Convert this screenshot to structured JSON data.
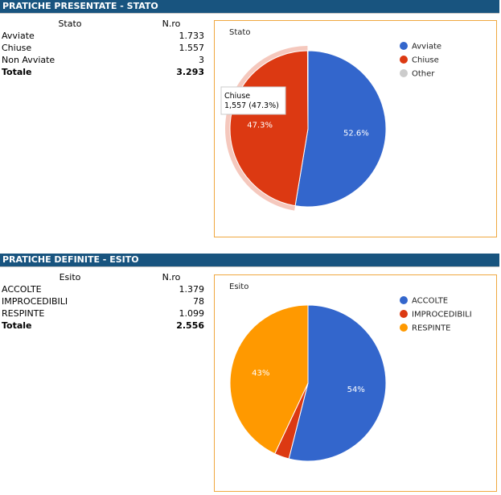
{
  "sections": [
    {
      "header": "PRATICHE PRESENTATE - STATO",
      "table": {
        "headers": [
          "Stato",
          "N.ro"
        ],
        "rows": [
          [
            "Avviate",
            "1.733"
          ],
          [
            "Chiuse",
            "1.557"
          ],
          [
            "Non Avviate",
            "3"
          ]
        ],
        "total": [
          "Totale",
          "3.293"
        ]
      }
    },
    {
      "header": "PRATICHE DEFINITE - ESITO",
      "table": {
        "headers": [
          "Esito",
          "N.ro"
        ],
        "rows": [
          [
            "ACCOLTE",
            "1.379"
          ],
          [
            "IMPROCEDIBILI",
            "78"
          ],
          [
            "RESPINTE",
            "1.099"
          ]
        ],
        "total": [
          "Totale",
          "2.556"
        ]
      }
    }
  ],
  "chart_data": [
    {
      "type": "pie",
      "title": "Stato",
      "legend_position": "right",
      "slices": [
        {
          "label": "Avviate",
          "value": 1733,
          "percent_label": "52.6%",
          "color": "#3366cc"
        },
        {
          "label": "Chiuse",
          "value": 1557,
          "percent_label": "47.3%",
          "color": "#dc3912"
        },
        {
          "label": "Other",
          "value": 3,
          "percent_label": "",
          "color": "#cccccc"
        }
      ],
      "highlighted": "Chiuse",
      "tooltip": {
        "title": "Chiuse",
        "text": "1,557 (47.3%)"
      }
    },
    {
      "type": "pie",
      "title": "Esito",
      "legend_position": "right",
      "slices": [
        {
          "label": "ACCOLTE",
          "value": 1379,
          "percent_label": "54%",
          "color": "#3366cc"
        },
        {
          "label": "IMPROCEDIBILI",
          "value": 78,
          "percent_label": "",
          "color": "#dc3912"
        },
        {
          "label": "RESPINTE",
          "value": 1099,
          "percent_label": "43%",
          "color": "#ff9900"
        }
      ]
    }
  ]
}
